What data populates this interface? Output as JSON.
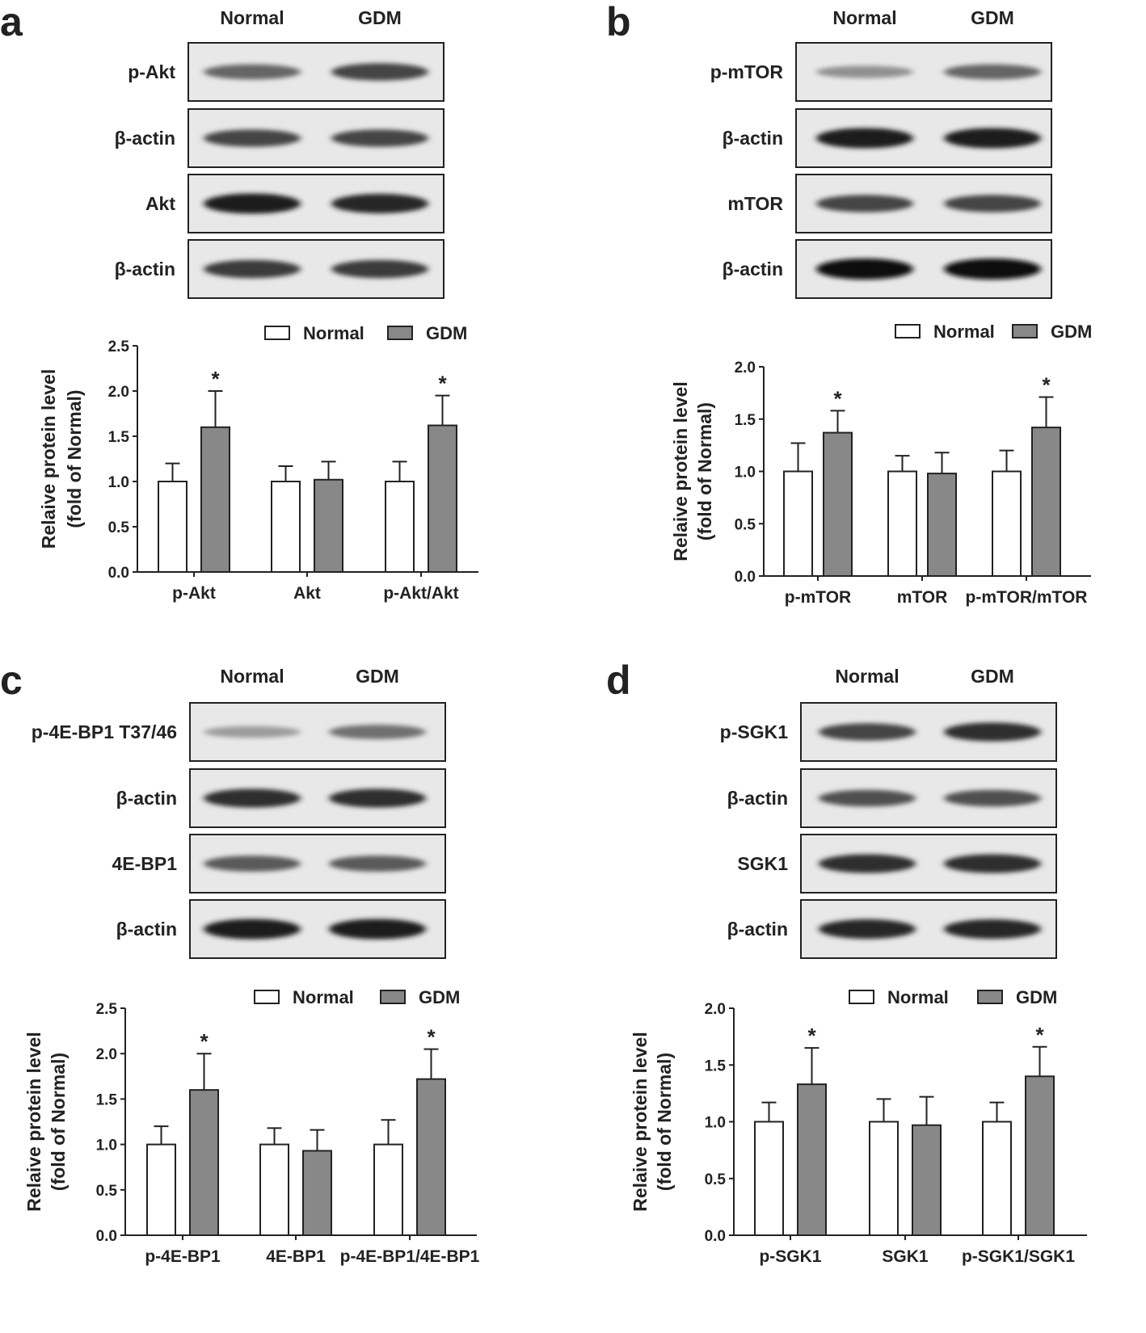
{
  "legend": {
    "normal": "Normal",
    "gdm": "GDM"
  },
  "colors": {
    "normal": "#ffffff",
    "gdm": "#888888",
    "axis": "#222222"
  },
  "ylabel_line1": "Relaive protein level",
  "ylabel_line2": "(fold of Normal)",
  "significance_mark": "*",
  "panels": [
    {
      "letter": "a",
      "lanes": [
        "Normal",
        "GDM"
      ],
      "blots": [
        {
          "label": "p-Akt",
          "band_intensity": [
            0.6,
            0.75
          ]
        },
        {
          "label": "β-actin",
          "band_intensity": [
            0.75,
            0.75
          ]
        },
        {
          "label": "Akt",
          "band_intensity": [
            0.95,
            0.9
          ]
        },
        {
          "label": "β-actin",
          "band_intensity": [
            0.8,
            0.8
          ]
        }
      ]
    },
    {
      "letter": "b",
      "lanes": [
        "Normal",
        "GDM"
      ],
      "blots": [
        {
          "label": "p-mTOR",
          "band_intensity": [
            0.4,
            0.6
          ]
        },
        {
          "label": "β-actin",
          "band_intensity": [
            0.95,
            0.95
          ]
        },
        {
          "label": "mTOR",
          "band_intensity": [
            0.75,
            0.75
          ]
        },
        {
          "label": "β-actin",
          "band_intensity": [
            1.0,
            1.0
          ]
        }
      ]
    },
    {
      "letter": "c",
      "lanes": [
        "Normal",
        "GDM"
      ],
      "blots": [
        {
          "label": "p-4E-BP1 T37/46",
          "band_intensity": [
            0.35,
            0.55
          ]
        },
        {
          "label": "β-actin",
          "band_intensity": [
            0.85,
            0.85
          ]
        },
        {
          "label": "4E-BP1",
          "band_intensity": [
            0.65,
            0.65
          ]
        },
        {
          "label": "β-actin",
          "band_intensity": [
            0.95,
            0.95
          ]
        }
      ]
    },
    {
      "letter": "d",
      "lanes": [
        "Normal",
        "GDM"
      ],
      "blots": [
        {
          "label": "p-SGK1",
          "band_intensity": [
            0.75,
            0.85
          ]
        },
        {
          "label": "β-actin",
          "band_intensity": [
            0.7,
            0.7
          ]
        },
        {
          "label": "SGK1",
          "band_intensity": [
            0.85,
            0.85
          ]
        },
        {
          "label": "β-actin",
          "band_intensity": [
            0.9,
            0.9
          ]
        }
      ]
    }
  ],
  "chart_data": [
    {
      "type": "bar",
      "panel": "a",
      "categories": [
        "p-Akt",
        "Akt",
        "p-Akt/Akt"
      ],
      "series": [
        {
          "name": "Normal",
          "values": [
            1.0,
            1.0,
            1.0
          ],
          "errors": [
            0.2,
            0.17,
            0.22
          ]
        },
        {
          "name": "GDM",
          "values": [
            1.6,
            1.02,
            1.62
          ],
          "errors": [
            0.4,
            0.2,
            0.33
          ]
        }
      ],
      "significant": [
        true,
        false,
        true
      ],
      "ylim": [
        0,
        2.5
      ],
      "yticks": [
        "0.0",
        "0.5",
        "1.0",
        "1.5",
        "2.0",
        "2.5"
      ],
      "ylabel": "Relaive protein level (fold of Normal)",
      "legend": "top-right"
    },
    {
      "type": "bar",
      "panel": "b",
      "categories": [
        "p-mTOR",
        "mTOR",
        "p-mTOR/mTOR"
      ],
      "series": [
        {
          "name": "Normal",
          "values": [
            1.0,
            1.0,
            1.0
          ],
          "errors": [
            0.27,
            0.15,
            0.2
          ]
        },
        {
          "name": "GDM",
          "values": [
            1.37,
            0.98,
            1.42
          ],
          "errors": [
            0.21,
            0.2,
            0.29
          ]
        }
      ],
      "significant": [
        true,
        false,
        true
      ],
      "ylim": [
        0,
        2.0
      ],
      "yticks": [
        "0.0",
        "0.5",
        "1.0",
        "1.5",
        "2.0"
      ],
      "ylabel": "Relaive protein level (fold of Normal)",
      "legend": "top-right"
    },
    {
      "type": "bar",
      "panel": "c",
      "categories": [
        "p-4E-BP1",
        "4E-BP1",
        "p-4E-BP1/4E-BP1"
      ],
      "series": [
        {
          "name": "Normal",
          "values": [
            1.0,
            1.0,
            1.0
          ],
          "errors": [
            0.2,
            0.18,
            0.27
          ]
        },
        {
          "name": "GDM",
          "values": [
            1.6,
            0.93,
            1.72
          ],
          "errors": [
            0.4,
            0.23,
            0.33
          ]
        }
      ],
      "significant": [
        true,
        false,
        true
      ],
      "ylim": [
        0,
        2.5
      ],
      "yticks": [
        "0.0",
        "0.5",
        "1.0",
        "1.5",
        "2.0",
        "2.5"
      ],
      "ylabel": "Relaive protein level (fold of Normal)",
      "legend": "top-right"
    },
    {
      "type": "bar",
      "panel": "d",
      "categories": [
        "p-SGK1",
        "SGK1",
        "p-SGK1/SGK1"
      ],
      "series": [
        {
          "name": "Normal",
          "values": [
            1.0,
            1.0,
            1.0
          ],
          "errors": [
            0.17,
            0.2,
            0.17
          ]
        },
        {
          "name": "GDM",
          "values": [
            1.33,
            0.97,
            1.4
          ],
          "errors": [
            0.32,
            0.25,
            0.26
          ]
        }
      ],
      "significant": [
        true,
        false,
        true
      ],
      "ylim": [
        0,
        2.0
      ],
      "yticks": [
        "0.0",
        "0.5",
        "1.0",
        "1.5",
        "2.0"
      ],
      "ylabel": "Relaive protein level (fold of Normal)",
      "legend": "top-right"
    }
  ]
}
